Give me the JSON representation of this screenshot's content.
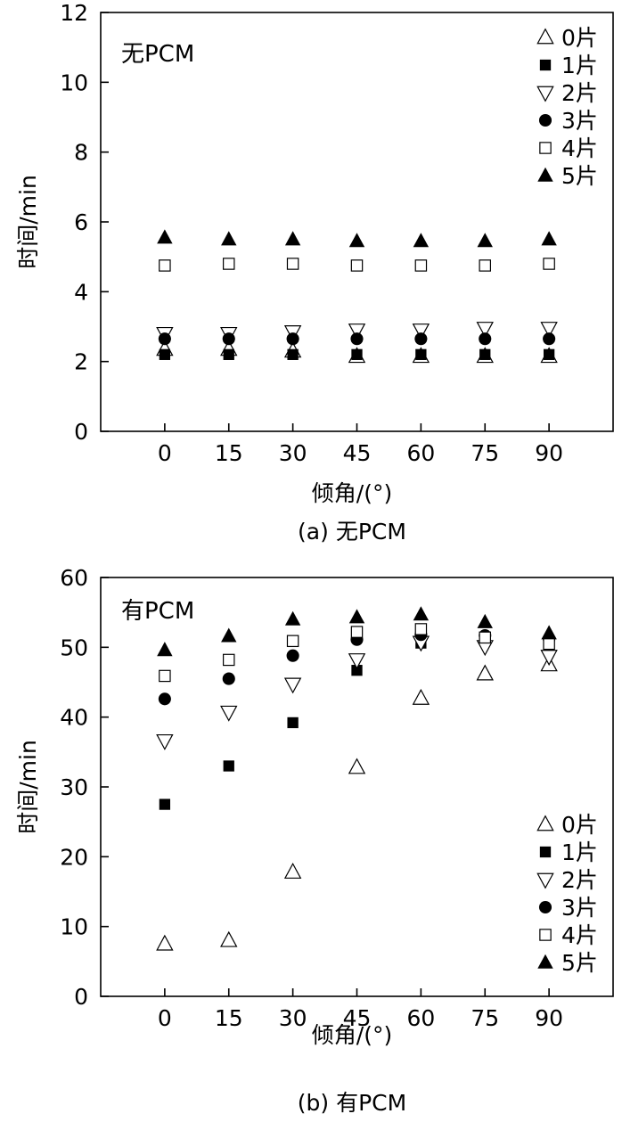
{
  "chart_data": [
    {
      "type": "scatter",
      "panel_label": "(a) 无PCM",
      "inset_title": "无PCM",
      "xlabel": "倾角/(°)",
      "ylabel": "时间/min",
      "xlim": [
        -15,
        105
      ],
      "ylim": [
        0,
        12
      ],
      "xticks": [
        0,
        15,
        30,
        45,
        60,
        75,
        90
      ],
      "yticks": [
        0,
        2,
        4,
        6,
        8,
        10,
        12
      ],
      "legend_position": "top-right",
      "x": [
        0,
        15,
        30,
        45,
        60,
        75,
        90
      ],
      "series": [
        {
          "name": "0片",
          "marker": "triangle-up-open",
          "values": [
            2.35,
            2.35,
            2.3,
            2.15,
            2.15,
            2.15,
            2.15
          ]
        },
        {
          "name": "1片",
          "marker": "square-filled",
          "values": [
            2.2,
            2.2,
            2.2,
            2.2,
            2.2,
            2.2,
            2.2
          ]
        },
        {
          "name": "2片",
          "marker": "triangle-down-open",
          "values": [
            2.8,
            2.8,
            2.85,
            2.9,
            2.9,
            2.95,
            2.95
          ]
        },
        {
          "name": "3片",
          "marker": "circle-filled",
          "values": [
            2.65,
            2.65,
            2.65,
            2.65,
            2.65,
            2.65,
            2.65
          ]
        },
        {
          "name": "4片",
          "marker": "square-open",
          "values": [
            4.75,
            4.8,
            4.8,
            4.75,
            4.75,
            4.75,
            4.8
          ]
        },
        {
          "name": "5片",
          "marker": "triangle-up-filled",
          "values": [
            5.55,
            5.5,
            5.5,
            5.45,
            5.45,
            5.45,
            5.5
          ]
        }
      ]
    },
    {
      "type": "scatter",
      "panel_label": "(b) 有PCM",
      "inset_title": "有PCM",
      "xlabel": "倾角/(°)",
      "ylabel": "时间/min",
      "xlim": [
        -15,
        105
      ],
      "ylim": [
        0,
        60
      ],
      "xticks": [
        0,
        15,
        30,
        45,
        60,
        75,
        90
      ],
      "yticks": [
        0,
        10,
        20,
        30,
        40,
        50,
        60
      ],
      "legend_position": "bottom-right",
      "x": [
        0,
        15,
        30,
        45,
        60,
        75,
        90
      ],
      "series": [
        {
          "name": "0片",
          "marker": "triangle-up-open",
          "values": [
            7.5,
            8.0,
            17.8,
            32.8,
            42.7,
            46.2,
            47.5
          ]
        },
        {
          "name": "1片",
          "marker": "square-filled",
          "values": [
            27.5,
            33.0,
            39.2,
            46.7,
            50.6,
            51.2,
            50.3
          ]
        },
        {
          "name": "2片",
          "marker": "triangle-down-open",
          "values": [
            36.6,
            40.7,
            44.7,
            48.2,
            50.7,
            50.1,
            48.7
          ]
        },
        {
          "name": "3片",
          "marker": "circle-filled",
          "values": [
            42.6,
            45.5,
            48.8,
            51.1,
            51.8,
            51.7,
            51.2
          ]
        },
        {
          "name": "4片",
          "marker": "square-open",
          "values": [
            45.9,
            48.2,
            50.9,
            52.2,
            52.6,
            51.4,
            50.5
          ]
        },
        {
          "name": "5片",
          "marker": "triangle-up-filled",
          "values": [
            49.6,
            51.6,
            54.0,
            54.3,
            54.7,
            53.6,
            52.0
          ]
        }
      ]
    }
  ]
}
